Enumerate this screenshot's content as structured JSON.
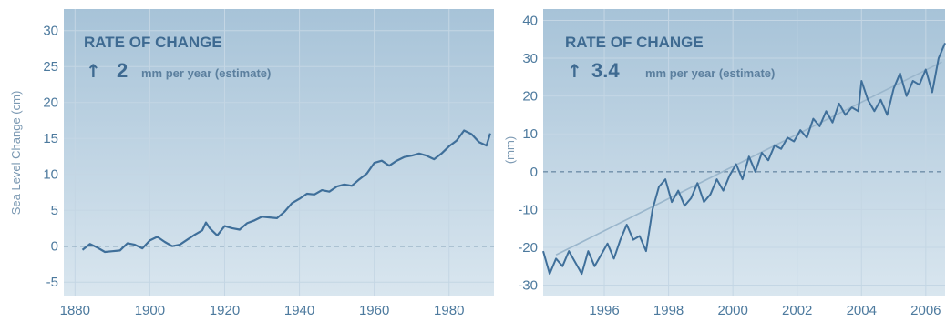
{
  "colors": {
    "panel_top": "#a7c3d8",
    "panel_bottom": "#d9e6ef",
    "grid": "#c4d6e4",
    "series_line": "#3f6f9a",
    "trend_line": "#9ab6cc",
    "zero_line": "#6f8ea8",
    "text": "#4d7a9e"
  },
  "chart_data": [
    {
      "type": "line",
      "title": "",
      "annotation": {
        "heading": "RATE OF CHANGE",
        "arrow": "↑",
        "value": "2",
        "unit_text": "mm per year (estimate)"
      },
      "xlabel": "",
      "ylabel": "Sea Level Change (cm)",
      "xlim": [
        1877,
        1992
      ],
      "ylim": [
        -7,
        33
      ],
      "xticks": [
        "1880",
        "1900",
        "1920",
        "1940",
        "1960",
        "1980"
      ],
      "yticks": [
        "-5",
        "0",
        "5",
        "10",
        "15",
        "20",
        "25",
        "30"
      ],
      "grid": true,
      "reference_line": 0,
      "series": [
        {
          "x": [
            1882,
            1884,
            1886,
            1888,
            1890,
            1892,
            1894,
            1896,
            1898,
            1900,
            1902,
            1904,
            1906,
            1908,
            1910,
            1912,
            1914,
            1915,
            1916,
            1918,
            1920,
            1922,
            1924,
            1926,
            1928,
            1930,
            1932,
            1934,
            1936,
            1938,
            1940,
            1942,
            1944,
            1946,
            1948,
            1950,
            1952,
            1954,
            1956,
            1958,
            1960,
            1962,
            1964,
            1966,
            1968,
            1970,
            1972,
            1974,
            1976,
            1978,
            1980,
            1982,
            1984,
            1986,
            1988,
            1990,
            1991
          ],
          "values": [
            -0.5,
            0.3,
            -0.2,
            -0.8,
            -0.7,
            -0.6,
            0.4,
            0.2,
            -0.3,
            0.8,
            1.3,
            0.6,
            0.0,
            0.2,
            0.9,
            1.6,
            2.2,
            3.3,
            2.5,
            1.5,
            2.8,
            2.5,
            2.3,
            3.2,
            3.6,
            4.1,
            4.0,
            3.9,
            4.8,
            6.0,
            6.6,
            7.3,
            7.2,
            7.8,
            7.6,
            8.3,
            8.6,
            8.4,
            9.3,
            10.1,
            11.6,
            11.9,
            11.2,
            11.9,
            12.4,
            12.6,
            12.9,
            12.6,
            12.1,
            12.9,
            13.9,
            14.7,
            16.1,
            15.6,
            14.5,
            14.0,
            15.7
          ]
        }
      ]
    },
    {
      "type": "line",
      "title": "",
      "annotation": {
        "heading": "RATE OF CHANGE",
        "arrow": "↑",
        "value": "3.4",
        "unit_text": "mm per year (estimate)"
      },
      "xlabel": "",
      "ylabel": "(mm)",
      "xlim": [
        1994.1,
        2006.6
      ],
      "ylim": [
        -33,
        43
      ],
      "xticks": [
        "1996",
        "1998",
        "2000",
        "2002",
        "2004",
        "2006"
      ],
      "yticks": [
        "-30",
        "-20",
        "-10",
        "0",
        "10",
        "20",
        "30",
        "40"
      ],
      "grid": true,
      "reference_line": 0,
      "trend": {
        "x": [
          1994.5,
          2006.5
        ],
        "values": [
          -22,
          29
        ]
      },
      "series": [
        {
          "x": [
            1994.1,
            1994.3,
            1994.5,
            1994.7,
            1994.9,
            1995.1,
            1995.3,
            1995.5,
            1995.7,
            1995.9,
            1996.1,
            1996.3,
            1996.5,
            1996.7,
            1996.9,
            1997.1,
            1997.3,
            1997.5,
            1997.7,
            1997.9,
            1998.1,
            1998.3,
            1998.5,
            1998.7,
            1998.9,
            1999.1,
            1999.3,
            1999.5,
            1999.7,
            1999.9,
            2000.1,
            2000.3,
            2000.5,
            2000.7,
            2000.9,
            2001.1,
            2001.3,
            2001.5,
            2001.7,
            2001.9,
            2002.1,
            2002.3,
            2002.5,
            2002.7,
            2002.9,
            2003.1,
            2003.3,
            2003.5,
            2003.7,
            2003.9,
            2004.0,
            2004.2,
            2004.4,
            2004.6,
            2004.8,
            2005.0,
            2005.2,
            2005.4,
            2005.6,
            2005.8,
            2006.0,
            2006.2,
            2006.4,
            2006.6
          ],
          "values": [
            -21,
            -27,
            -23,
            -25,
            -21,
            -24,
            -27,
            -21,
            -25,
            -22,
            -19,
            -23,
            -18,
            -14,
            -18,
            -17,
            -21,
            -10,
            -4,
            -2,
            -8,
            -5,
            -9,
            -7,
            -3,
            -8,
            -6,
            -2,
            -5,
            -1,
            2,
            -2,
            4,
            0,
            5,
            3,
            7,
            6,
            9,
            8,
            11,
            9,
            14,
            12,
            16,
            13,
            18,
            15,
            17,
            16,
            24,
            19,
            16,
            19,
            15,
            22,
            26,
            20,
            24,
            23,
            27,
            21,
            30,
            34
          ]
        }
      ]
    }
  ]
}
